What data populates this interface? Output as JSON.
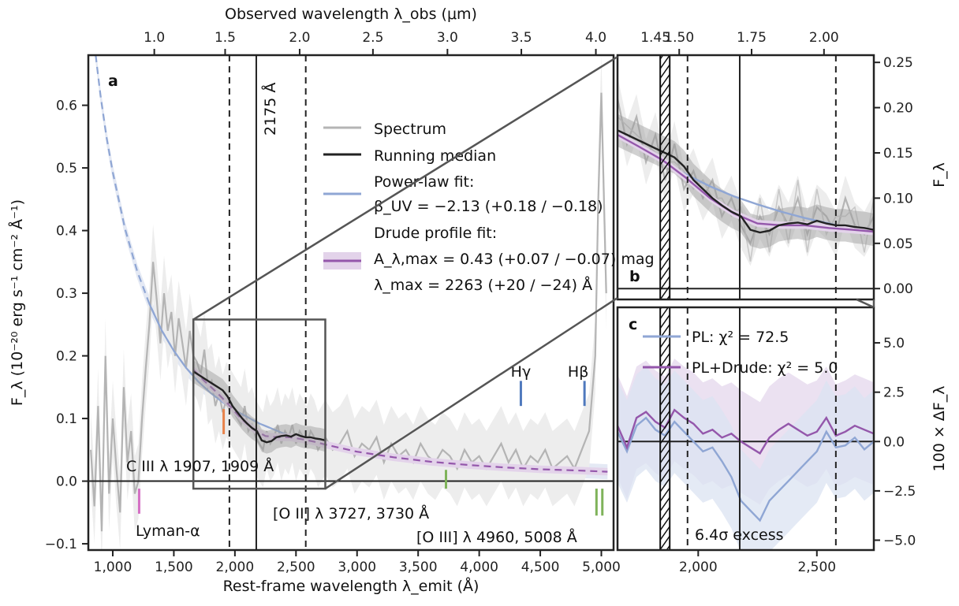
{
  "chart_data": [
    {
      "panel": "a",
      "type": "line",
      "xlabel": "Rest-frame wavelength λ_emit (Å)",
      "ylabel": "F_λ (10⁻²⁰ erg s⁻¹ cm⁻² Å⁻¹)",
      "top_xlabel": "Observed wavelength λ_obs (μm)",
      "xlim": [
        800,
        5100
      ],
      "ylim": [
        -0.11,
        0.68
      ],
      "xticks": [
        1000,
        1500,
        2000,
        2500,
        3000,
        3500,
        4000,
        4500,
        5000
      ],
      "xticklabels": [
        "1,000",
        "1,500",
        "2,000",
        "2,500",
        "3,000",
        "3,500",
        "4,000",
        "4,500",
        "5,000"
      ],
      "yticks": [
        -0.1,
        0.0,
        0.1,
        0.2,
        0.3,
        0.4,
        0.5,
        0.6
      ],
      "yticklabels": [
        "−0.1",
        "0.0",
        "0.1",
        "0.2",
        "0.3",
        "0.4",
        "0.5",
        "0.6"
      ],
      "top_ticks_rest": [
        1340,
        1920,
        2530,
        3130,
        3740,
        4345,
        4955
      ],
      "top_ticklabels": [
        "1.0",
        "1.5",
        "2.0",
        "2.5",
        "3.0",
        "3.5",
        "4.0"
      ],
      "vlines": [
        {
          "x": 1955,
          "style": "dashed"
        },
        {
          "x": 2175,
          "style": "solid",
          "label": "2175 Å"
        },
        {
          "x": 2580,
          "style": "dashed"
        }
      ],
      "zoom_box": {
        "x": [
          1660,
          2740
        ],
        "y": [
          -0.012,
          0.258
        ]
      },
      "legend": {
        "placement": "center",
        "entries": [
          {
            "key": "spectrum",
            "label": "Spectrum",
            "color": "#b4b4b4"
          },
          {
            "key": "median",
            "label": "Running median",
            "color": "#222222"
          },
          {
            "key": "powerlaw",
            "label": "Power-law fit:",
            "sub": "β_UV = −2.13 (+0.18 / −0.18)",
            "color": "#8fa6d4"
          },
          {
            "key": "drude",
            "label": "Drude profile fit:",
            "sub": "A_λ,max = 0.43 (+0.07 / −0.07) mag",
            "sub2": "λ_max = 2263 (+20 / −24) Å",
            "color": "#9457ab"
          }
        ]
      },
      "line_labels": [
        {
          "text": "C III λ 1907, 1909 Å",
          "color": "#e8824a",
          "marker_x": 1908
        },
        {
          "text": "[O II] λ 3727, 3730 Å",
          "color": "#7fb35a",
          "marker_x": 3728
        },
        {
          "text": "[O III] λ 4960, 5008 Å",
          "color": "#7fb35a",
          "marker_x": [
            4960,
            5008
          ]
        },
        {
          "text": "Lyman-α",
          "color": "#d46fc4",
          "marker_x": 1216
        },
        {
          "text": "Hγ",
          "color": "#4f79bd",
          "marker_x": 4341
        },
        {
          "text": "Hβ",
          "color": "#4f79bd",
          "marker_x": 4862
        }
      ],
      "series": [
        {
          "name": "Spectrum",
          "color": "#b4b4b4",
          "x": [
            820,
            850,
            880,
            910,
            940,
            970,
            1000,
            1030,
            1060,
            1090,
            1120,
            1150,
            1180,
            1210,
            1240,
            1270,
            1300,
            1330,
            1360,
            1390,
            1420,
            1450,
            1480,
            1510,
            1540,
            1570,
            1600,
            1630,
            1660,
            1690,
            1720,
            1750,
            1780,
            1810,
            1840,
            1870,
            1900,
            1930,
            1960,
            1990,
            2020,
            2050,
            2080,
            2110,
            2140,
            2170,
            2200,
            2230,
            2260,
            2290,
            2320,
            2350,
            2380,
            2410,
            2440,
            2470,
            2500,
            2530,
            2560,
            2590,
            2620,
            2650,
            2680,
            2710,
            2740,
            2800,
            2860,
            2920,
            2980,
            3040,
            3100,
            3160,
            3220,
            3280,
            3340,
            3400,
            3460,
            3520,
            3580,
            3640,
            3700,
            3760,
            3820,
            3880,
            3940,
            4000,
            4060,
            4120,
            4180,
            4240,
            4300,
            4360,
            4420,
            4480,
            4540,
            4600,
            4660,
            4720,
            4780,
            4840,
            4900,
            4950,
            4975,
            5000,
            5040
          ],
          "y": [
            0.05,
            -0.04,
            0.12,
            -0.08,
            0.2,
            -0.02,
            0.1,
            0.02,
            -0.05,
            0.15,
            0.03,
            0.08,
            -0.02,
            0.0,
            0.1,
            0.18,
            0.25,
            0.35,
            0.29,
            0.22,
            0.3,
            0.24,
            0.27,
            0.2,
            0.26,
            0.22,
            0.18,
            0.24,
            0.2,
            0.19,
            0.17,
            0.21,
            0.15,
            0.16,
            0.12,
            0.14,
            0.11,
            0.13,
            0.12,
            0.11,
            0.1,
            0.09,
            0.12,
            0.08,
            0.09,
            0.07,
            0.06,
            0.05,
            0.08,
            0.06,
            0.07,
            0.09,
            0.06,
            0.08,
            0.07,
            0.09,
            0.06,
            0.08,
            0.07,
            0.06,
            0.08,
            0.07,
            0.05,
            0.06,
            0.07,
            0.05,
            0.06,
            0.08,
            0.04,
            0.06,
            0.05,
            0.07,
            0.03,
            0.06,
            0.04,
            0.05,
            0.03,
            0.06,
            0.04,
            0.03,
            0.05,
            0.04,
            0.02,
            0.05,
            0.03,
            0.04,
            0.02,
            0.04,
            0.06,
            0.03,
            0.05,
            0.02,
            0.04,
            0.03,
            0.05,
            0.02,
            0.03,
            0.04,
            0.02,
            0.05,
            0.08,
            0.2,
            0.45,
            0.62,
            0.3
          ]
        },
        {
          "name": "Running median",
          "color": "#222222",
          "x": [
            1660,
            1700,
            1740,
            1780,
            1820,
            1860,
            1900,
            1940,
            1980,
            2020,
            2060,
            2100,
            2140,
            2180,
            2220,
            2260,
            2300,
            2340,
            2380,
            2420,
            2460,
            2500,
            2540,
            2580,
            2620,
            2660,
            2700,
            2740
          ],
          "y": [
            0.175,
            0.17,
            0.165,
            0.16,
            0.155,
            0.15,
            0.145,
            0.135,
            0.12,
            0.11,
            0.1,
            0.092,
            0.085,
            0.08,
            0.065,
            0.062,
            0.064,
            0.07,
            0.072,
            0.073,
            0.071,
            0.075,
            0.072,
            0.07,
            0.07,
            0.068,
            0.067,
            0.065
          ]
        },
        {
          "name": "Power-law fit",
          "color": "#8fa6d4",
          "x": [
            860,
            900,
            950,
            1000,
            1100,
            1200,
            1300,
            1400,
            1500,
            1600,
            1700,
            1800,
            1900,
            2000,
            2200,
            2400,
            2600,
            2800,
            3000,
            3300,
            3600,
            3900,
            4200,
            4500,
            4800,
            5050
          ],
          "y": [
            0.68,
            0.615,
            0.548,
            0.493,
            0.403,
            0.335,
            0.283,
            0.241,
            0.208,
            0.181,
            0.159,
            0.141,
            0.126,
            0.113,
            0.092,
            0.076,
            0.064,
            0.054,
            0.047,
            0.038,
            0.031,
            0.026,
            0.022,
            0.019,
            0.017,
            0.015
          ]
        },
        {
          "name": "Drude profile fit",
          "color": "#9457ab",
          "x": [
            1660,
            1750,
            1850,
            1950,
            2050,
            2150,
            2250,
            2350,
            2450,
            2550,
            2650,
            2750,
            3000,
            3300,
            3600,
            3900,
            4200,
            4500,
            4800,
            5050
          ],
          "y": [
            0.178,
            0.16,
            0.142,
            0.122,
            0.1,
            0.083,
            0.072,
            0.07,
            0.07,
            0.067,
            0.063,
            0.058,
            0.047,
            0.038,
            0.031,
            0.026,
            0.022,
            0.019,
            0.017,
            0.015
          ]
        }
      ]
    },
    {
      "panel": "b",
      "type": "line",
      "ylabel": "F_λ",
      "xlim": [
        1660,
        2740
      ],
      "ylim": [
        -0.012,
        0.258
      ],
      "yticks": [
        0.0,
        0.05,
        0.1,
        0.15,
        0.2,
        0.25
      ],
      "yticklabels": [
        "0.00",
        "0.05",
        "0.10",
        "0.15",
        "0.20",
        "0.25"
      ],
      "top_ticks_rest": [
        1920,
        2225,
        2530
      ],
      "top_ticklabels": [
        "1.50",
        "1.75",
        "2.00"
      ],
      "extra_top_tick": {
        "rest": 1820,
        "label": "1.45"
      },
      "hatched_band": [
        1840,
        1880
      ],
      "series": [
        {
          "name": "Spectrum",
          "x": [
            1660,
            1700,
            1740,
            1780,
            1820,
            1860,
            1900,
            1940,
            1980,
            2020,
            2060,
            2100,
            2140,
            2180,
            2220,
            2260,
            2300,
            2340,
            2380,
            2420,
            2460,
            2500,
            2540,
            2580,
            2620,
            2660,
            2700,
            2740
          ],
          "y": [
            0.21,
            0.16,
            0.19,
            0.14,
            0.17,
            0.12,
            0.16,
            0.11,
            0.13,
            0.1,
            0.12,
            0.08,
            0.1,
            0.07,
            0.05,
            0.08,
            0.06,
            0.09,
            0.07,
            0.1,
            0.06,
            0.09,
            0.08,
            0.06,
            0.1,
            0.07,
            0.06,
            0.08
          ]
        },
        {
          "name": "Running median",
          "x": [
            1660,
            1700,
            1740,
            1780,
            1820,
            1860,
            1900,
            1940,
            1980,
            2020,
            2060,
            2100,
            2140,
            2180,
            2220,
            2260,
            2300,
            2340,
            2380,
            2420,
            2460,
            2500,
            2540,
            2580,
            2620,
            2660,
            2700,
            2740
          ],
          "y": [
            0.175,
            0.17,
            0.165,
            0.16,
            0.155,
            0.15,
            0.145,
            0.135,
            0.12,
            0.11,
            0.1,
            0.092,
            0.085,
            0.08,
            0.065,
            0.062,
            0.064,
            0.07,
            0.072,
            0.073,
            0.071,
            0.075,
            0.072,
            0.07,
            0.07,
            0.068,
            0.067,
            0.065
          ]
        },
        {
          "name": "Power-law fit",
          "x": [
            1660,
            1750,
            1850,
            1950,
            2050,
            2150,
            2250,
            2350,
            2450,
            2550,
            2650,
            2740
          ],
          "y": [
            0.17,
            0.155,
            0.14,
            0.126,
            0.113,
            0.102,
            0.093,
            0.085,
            0.078,
            0.072,
            0.066,
            0.062
          ]
        },
        {
          "name": "Drude profile fit",
          "x": [
            1660,
            1750,
            1850,
            1950,
            2050,
            2150,
            2250,
            2350,
            2450,
            2550,
            2650,
            2740
          ],
          "y": [
            0.17,
            0.157,
            0.142,
            0.122,
            0.1,
            0.083,
            0.072,
            0.07,
            0.07,
            0.067,
            0.065,
            0.063
          ]
        }
      ]
    },
    {
      "panel": "c",
      "type": "line",
      "ylabel": "100 × ΔF_λ",
      "xlim": [
        1660,
        2740
      ],
      "ylim": [
        -5.5,
        6.8
      ],
      "xticks": [
        2000,
        2500
      ],
      "xticklabels": [
        "2,000",
        "2,500"
      ],
      "yticks": [
        -5.0,
        -2.5,
        0.0,
        2.5,
        5.0
      ],
      "yticklabels": [
        "−5.0",
        "−2.5",
        "0.0",
        "2.5",
        "5.0"
      ],
      "annotation": "6.4σ excess",
      "legend": {
        "entries": [
          {
            "key": "pl",
            "label": "PL: χ² = 72.5",
            "color": "#8fa6d4"
          },
          {
            "key": "pldrude",
            "label": "PL+Drude: χ² = 5.0",
            "color": "#9457ab"
          }
        ]
      },
      "series": [
        {
          "name": "PL",
          "color": "#8fa6d4",
          "x": [
            1660,
            1700,
            1740,
            1780,
            1820,
            1860,
            1900,
            1940,
            1980,
            2020,
            2060,
            2100,
            2140,
            2180,
            2220,
            2260,
            2300,
            2340,
            2380,
            2420,
            2460,
            2500,
            2540,
            2580,
            2620,
            2660,
            2700,
            2740
          ],
          "y": [
            0.5,
            -0.5,
            0.8,
            1.2,
            0.6,
            0.3,
            1.0,
            0.5,
            0.0,
            -0.5,
            -0.3,
            -1.0,
            -1.8,
            -3.0,
            -3.5,
            -4.0,
            -3.0,
            -2.5,
            -2.0,
            -1.5,
            -1.0,
            -0.5,
            0.5,
            -0.3,
            -0.2,
            0.2,
            -0.4,
            0.0
          ]
        },
        {
          "name": "PL+Drude",
          "color": "#9457ab",
          "x": [
            1660,
            1700,
            1740,
            1780,
            1820,
            1860,
            1900,
            1940,
            1980,
            2020,
            2060,
            2100,
            2140,
            2180,
            2220,
            2260,
            2300,
            2340,
            2380,
            2420,
            2460,
            2500,
            2540,
            2580,
            2620,
            2660,
            2700,
            2740
          ],
          "y": [
            0.8,
            -0.3,
            1.2,
            1.5,
            1.0,
            0.7,
            1.6,
            1.2,
            0.9,
            0.4,
            0.6,
            0.2,
            0.4,
            0.0,
            -0.3,
            -0.6,
            0.2,
            0.6,
            0.9,
            0.6,
            0.3,
            0.5,
            1.2,
            0.3,
            0.5,
            0.8,
            0.6,
            0.4
          ]
        }
      ]
    }
  ]
}
